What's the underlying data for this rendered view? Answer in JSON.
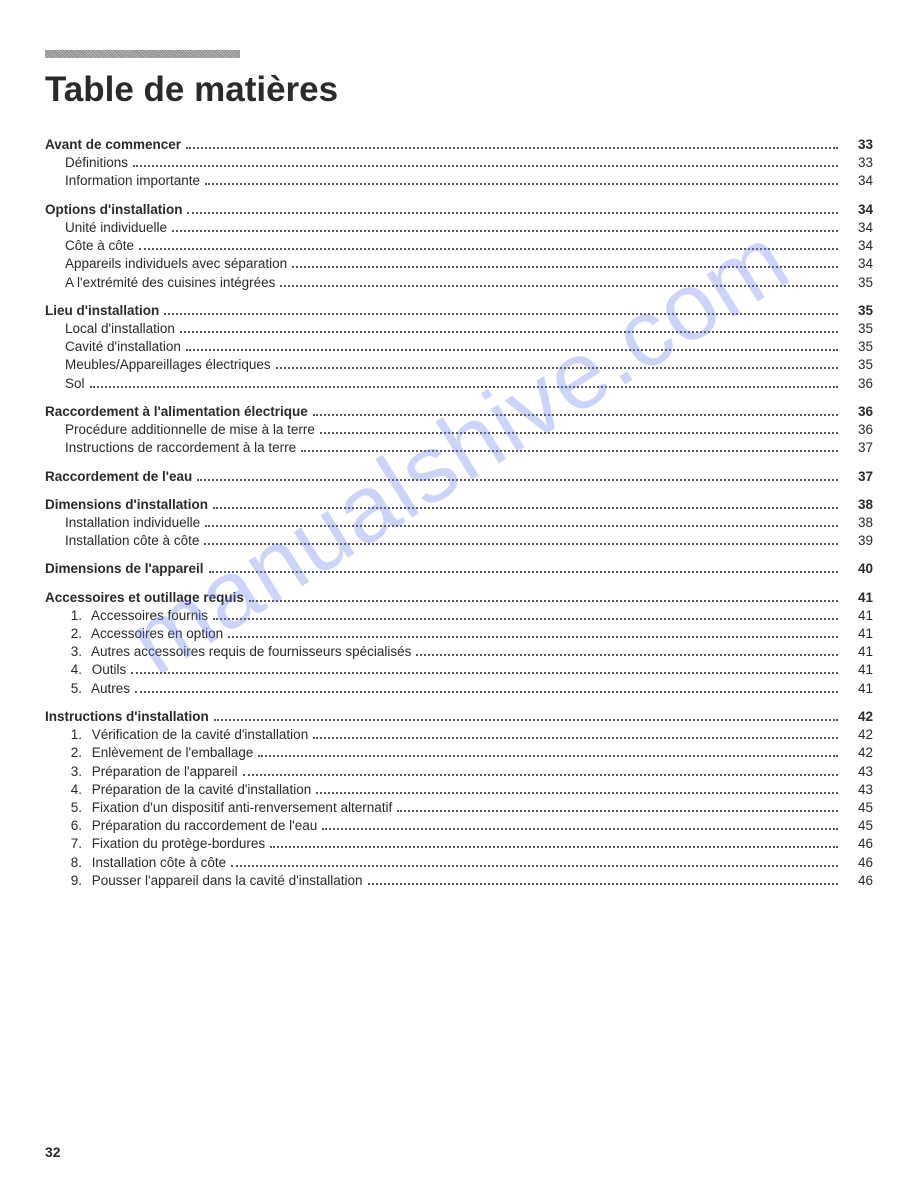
{
  "title": "Table de matières",
  "page_number": "32",
  "watermark": "manualshive.com",
  "colors": {
    "text": "#2a2a2a",
    "watermark": "rgba(100,120,235,0.32)",
    "dots": "#555555",
    "background": "#ffffff"
  },
  "sections": [
    {
      "heading": {
        "label": "Avant de commencer",
        "page": "33"
      },
      "items": [
        {
          "label": "Définitions",
          "page": "33"
        },
        {
          "label": "Information importante",
          "page": "34"
        }
      ]
    },
    {
      "heading": {
        "label": "Options d'installation",
        "page": "34"
      },
      "items": [
        {
          "label": "Unité individuelle",
          "page": "34"
        },
        {
          "label": "Côte à côte",
          "page": "34"
        },
        {
          "label": "Appareils individuels avec séparation",
          "page": "34"
        },
        {
          "label": "A l'extrémité des cuisines intégrées",
          "page": "35"
        }
      ]
    },
    {
      "heading": {
        "label": "Lieu d'installation",
        "page": "35"
      },
      "items": [
        {
          "label": "Local d'installation",
          "page": "35"
        },
        {
          "label": "Cavité d'installation",
          "page": "35"
        },
        {
          "label": "Meubles/Appareillages électriques",
          "page": "35"
        },
        {
          "label": "Sol",
          "page": "36"
        }
      ]
    },
    {
      "heading": {
        "label": "Raccordement à l'alimentation électrique",
        "page": "36"
      },
      "items": [
        {
          "label": "Procédure additionnelle de mise à la terre",
          "page": "36"
        },
        {
          "label": "Instructions de raccordement à la terre",
          "page": "37"
        }
      ]
    },
    {
      "heading": {
        "label": "Raccordement de l'eau",
        "page": "37"
      },
      "items": []
    },
    {
      "heading": {
        "label": "Dimensions d'installation",
        "page": "38"
      },
      "items": [
        {
          "label": "Installation individuelle",
          "page": "38"
        },
        {
          "label": "Installation côte à côte",
          "page": "39"
        }
      ]
    },
    {
      "heading": {
        "label": "Dimensions de l'appareil",
        "page": "40"
      },
      "items": []
    },
    {
      "heading": {
        "label": "Accessoires et outillage requis",
        "page": "41"
      },
      "items": [
        {
          "num": "1.",
          "label": "Accessoires fournis",
          "page": "41"
        },
        {
          "num": "2.",
          "label": "Accessoires en option",
          "page": "41"
        },
        {
          "num": "3.",
          "label": "Autres accessoires requis de fournisseurs spécialisés",
          "page": "41"
        },
        {
          "num": "4.",
          "label": "Outils",
          "page": "41"
        },
        {
          "num": "5.",
          "label": "Autres",
          "page": "41"
        }
      ]
    },
    {
      "heading": {
        "label": "Instructions d'installation",
        "page": "42"
      },
      "items": [
        {
          "num": "1.",
          "label": "Vérification de la cavité d'installation",
          "page": "42"
        },
        {
          "num": "2.",
          "label": "Enlèvement de l'emballage",
          "page": "42"
        },
        {
          "num": "3.",
          "label": "Préparation de l'appareil",
          "page": "43"
        },
        {
          "num": "4.",
          "label": "Préparation de la cavité d'installation",
          "page": "43"
        },
        {
          "num": "5.",
          "label": "Fixation d'un dispositif anti-renversement alternatif",
          "page": "45"
        },
        {
          "num": "6.",
          "label": "Préparation du raccordement de l'eau",
          "page": "45"
        },
        {
          "num": "7.",
          "label": "Fixation du protège-bordures",
          "page": "46"
        },
        {
          "num": "8.",
          "label": "Installation côte à côte",
          "page": "46"
        },
        {
          "num": "9.",
          "label": "Pousser l'appareil dans la cavité d'installation",
          "page": "46"
        }
      ]
    }
  ]
}
